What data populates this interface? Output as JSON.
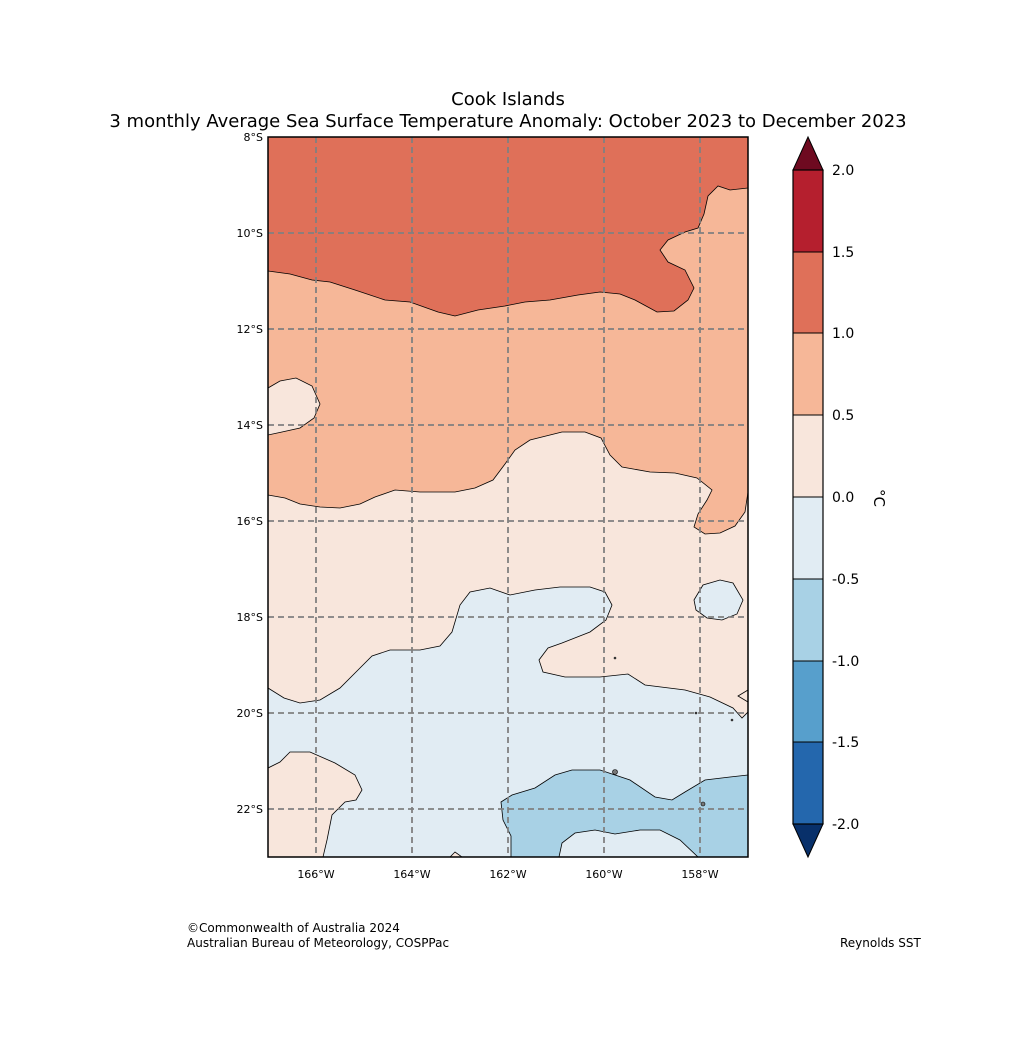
{
  "title": {
    "line1": "Cook Islands",
    "line2": "3 monthly Average Sea Surface Temperature Anomaly: October 2023 to December 2023"
  },
  "map": {
    "lat_labels": [
      "8°S",
      "10°S",
      "12°S",
      "14°S",
      "16°S",
      "18°S",
      "20°S",
      "22°S"
    ],
    "lon_labels": [
      "166°W",
      "164°W",
      "162°W",
      "160°W",
      "158°W"
    ],
    "lat_range": [
      -23,
      -8
    ],
    "lon_range": [
      -167,
      -157
    ],
    "gridlines": true,
    "anomaly_regions_celsius": [
      {
        "range": "1.0 to 1.5",
        "color": "#df7059",
        "where": "north"
      },
      {
        "range": "0.5 to 1.0",
        "color": "#f6b798",
        "where": "band around 12°S to 15°S"
      },
      {
        "range": "0.0 to 0.5",
        "color": "#f8e6dc",
        "where": "central band around 15°S to 19°S"
      },
      {
        "range": "-0.5 to 0.0",
        "color": "#e1ecf3",
        "where": "south-central"
      },
      {
        "range": "-1.0 to -0.5",
        "color": "#a8d1e5",
        "where": "southeast corner"
      }
    ]
  },
  "colorbar": {
    "unit": "°C",
    "tick_labels": [
      "2.0",
      "1.5",
      "1.0",
      "0.5",
      "0.0",
      "-0.5",
      "-1.0",
      "-1.5",
      "-2.0"
    ],
    "colors": [
      "#b51f2e",
      "#df7059",
      "#f6b798",
      "#f8e6dc",
      "#e1ecf3",
      "#a8d1e5",
      "#579fcc",
      "#2467ad"
    ],
    "over_color": "#6e0a20",
    "under_color": "#08306a"
  },
  "footer": {
    "copyright_line1": "©Commonwealth of Australia 2024",
    "copyright_line2": "Australian Bureau of Meteorology, COSPPac",
    "source": "Reynolds SST"
  }
}
